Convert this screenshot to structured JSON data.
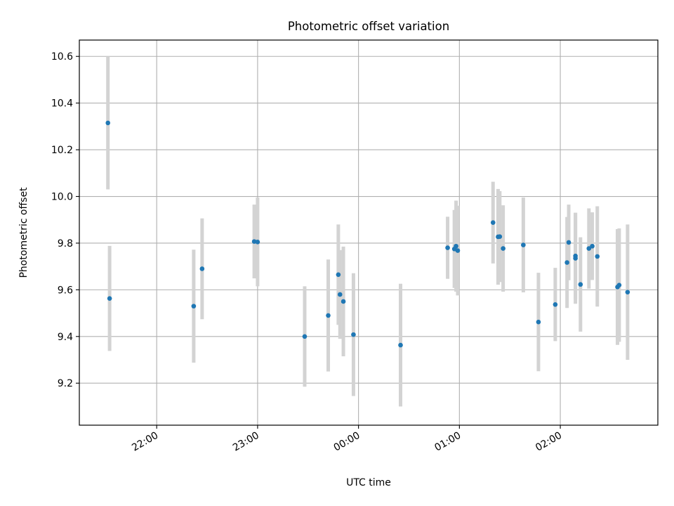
{
  "chart_data": {
    "type": "scatter",
    "title": "Photometric offset variation",
    "xlabel": "UTC time",
    "ylabel": "Photometric offset",
    "x_axis": {
      "kind": "time",
      "xlim": [
        "21:14",
        "02:58"
      ],
      "ticks": [
        "22:00",
        "23:00",
        "00:00",
        "01:00",
        "02:00"
      ],
      "tick_rotation_deg": 30
    },
    "y_axis": {
      "ylim": [
        9.02,
        10.67
      ],
      "ticks": [
        9.2,
        9.4,
        9.6,
        9.8,
        10.0,
        10.2,
        10.4,
        10.6
      ],
      "tick_labels": [
        "9.2",
        "9.4",
        "9.6",
        "9.8",
        "10.0",
        "10.2",
        "10.4",
        "10.6"
      ]
    },
    "grid": true,
    "colors": {
      "marker": "#1f77b4",
      "errorbar": "#d3d3d3",
      "grid": "#b0b0b0",
      "axes": "#000000"
    },
    "points": [
      {
        "t": "21:31",
        "y": 10.315,
        "err": 0.285
      },
      {
        "t": "21:32",
        "y": 9.563,
        "err": 0.225
      },
      {
        "t": "22:22",
        "y": 9.53,
        "err": 0.242
      },
      {
        "t": "22:27",
        "y": 9.69,
        "err": 0.216
      },
      {
        "t": "22:58",
        "y": 9.807,
        "err": 0.158
      },
      {
        "t": "23:00",
        "y": 9.805,
        "err": 0.19
      },
      {
        "t": "23:28",
        "y": 9.4,
        "err": 0.215
      },
      {
        "t": "23:42",
        "y": 9.49,
        "err": 0.24
      },
      {
        "t": "23:48",
        "y": 9.665,
        "err": 0.215
      },
      {
        "t": "23:49",
        "y": 9.58,
        "err": 0.19
      },
      {
        "t": "23:51",
        "y": 9.55,
        "err": 0.235
      },
      {
        "t": "23:57",
        "y": 9.408,
        "err": 0.263
      },
      {
        "t": "00:25",
        "y": 9.363,
        "err": 0.263
      },
      {
        "t": "00:53",
        "y": 9.78,
        "err": 0.133
      },
      {
        "t": "00:57",
        "y": 9.775,
        "err": 0.167
      },
      {
        "t": "00:58",
        "y": 9.787,
        "err": 0.195
      },
      {
        "t": "00:59",
        "y": 9.768,
        "err": 0.192
      },
      {
        "t": "01:20",
        "y": 9.888,
        "err": 0.175
      },
      {
        "t": "01:23",
        "y": 9.827,
        "err": 0.205
      },
      {
        "t": "01:24",
        "y": 9.828,
        "err": 0.195
      },
      {
        "t": "01:26",
        "y": 9.777,
        "err": 0.185
      },
      {
        "t": "01:38",
        "y": 9.792,
        "err": 0.203
      },
      {
        "t": "01:47",
        "y": 9.462,
        "err": 0.211
      },
      {
        "t": "01:57",
        "y": 9.537,
        "err": 0.157
      },
      {
        "t": "02:04",
        "y": 9.717,
        "err": 0.195
      },
      {
        "t": "02:05",
        "y": 9.803,
        "err": 0.162
      },
      {
        "t": "02:09",
        "y": 9.745,
        "err": 0.185
      },
      {
        "t": "02:09",
        "y": 9.735,
        "err": 0.195
      },
      {
        "t": "02:12",
        "y": 9.623,
        "err": 0.202
      },
      {
        "t": "02:17",
        "y": 9.777,
        "err": 0.172
      },
      {
        "t": "02:19",
        "y": 9.787,
        "err": 0.145
      },
      {
        "t": "02:22",
        "y": 9.743,
        "err": 0.215
      },
      {
        "t": "02:34",
        "y": 9.612,
        "err": 0.248
      },
      {
        "t": "02:35",
        "y": 9.62,
        "err": 0.243
      },
      {
        "t": "02:40",
        "y": 9.59,
        "err": 0.29
      }
    ]
  }
}
